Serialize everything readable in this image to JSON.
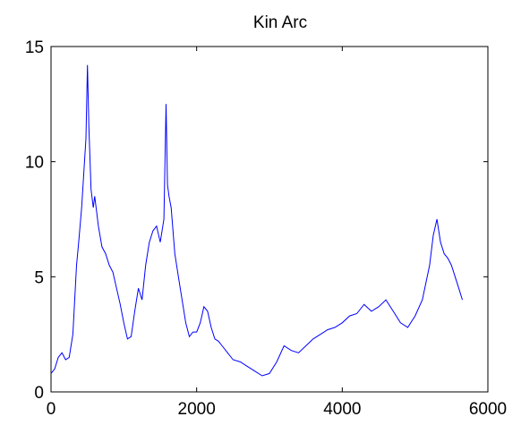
{
  "chart_data": {
    "type": "line",
    "title": "Kin Arc",
    "xlabel": "",
    "ylabel": "",
    "xlim": [
      0,
      6000
    ],
    "ylim": [
      0,
      15
    ],
    "xticks": [
      0,
      2000,
      4000,
      6000
    ],
    "yticks": [
      0,
      5,
      10,
      15
    ],
    "xtick_labels": [
      "0",
      "2000",
      "4000",
      "6000"
    ],
    "ytick_labels": [
      "0",
      "5",
      "10",
      "15"
    ],
    "grid": false,
    "legend": "none",
    "line_color": "#0000ff",
    "series": [
      {
        "x": [
          0,
          50,
          100,
          150,
          200,
          250,
          300,
          350,
          380,
          420,
          450,
          480,
          500,
          520,
          550,
          580,
          600,
          650,
          700,
          750,
          800,
          850,
          900,
          950,
          1000,
          1050,
          1100,
          1150,
          1200,
          1250,
          1300,
          1350,
          1400,
          1450,
          1500,
          1550,
          1580,
          1600,
          1620,
          1650,
          1700,
          1750,
          1800,
          1850,
          1900,
          1950,
          2000,
          2050,
          2100,
          2150,
          2200,
          2250,
          2300,
          2350,
          2400,
          2500,
          2600,
          2700,
          2800,
          2900,
          3000,
          3100,
          3200,
          3300,
          3400,
          3500,
          3600,
          3700,
          3800,
          3900,
          4000,
          4100,
          4200,
          4300,
          4400,
          4500,
          4600,
          4700,
          4800,
          4900,
          5000,
          5100,
          5200,
          5250,
          5300,
          5350,
          5400,
          5450,
          5500,
          5550,
          5600,
          5650
        ],
        "y": [
          0.8,
          1.0,
          1.5,
          1.7,
          1.4,
          1.5,
          2.5,
          5.5,
          6.5,
          8.0,
          9.5,
          11.0,
          14.2,
          11.5,
          8.8,
          8.0,
          8.5,
          7.2,
          6.3,
          6.0,
          5.5,
          5.2,
          4.5,
          3.8,
          3.0,
          2.3,
          2.4,
          3.5,
          4.5,
          4.0,
          5.5,
          6.5,
          7.0,
          7.2,
          6.5,
          7.5,
          12.5,
          9.0,
          8.5,
          8.0,
          6.0,
          5.0,
          4.0,
          3.0,
          2.4,
          2.6,
          2.6,
          3.0,
          3.7,
          3.5,
          2.8,
          2.3,
          2.2,
          2.0,
          1.8,
          1.4,
          1.3,
          1.1,
          0.9,
          0.7,
          0.8,
          1.3,
          2.0,
          1.8,
          1.7,
          2.0,
          2.3,
          2.5,
          2.7,
          2.8,
          3.0,
          3.3,
          3.4,
          3.8,
          3.5,
          3.7,
          4.0,
          3.5,
          3.0,
          2.8,
          3.3,
          4.0,
          5.5,
          6.8,
          7.5,
          6.5,
          6.0,
          5.8,
          5.5,
          5.0,
          4.5,
          4.0
        ]
      }
    ]
  }
}
